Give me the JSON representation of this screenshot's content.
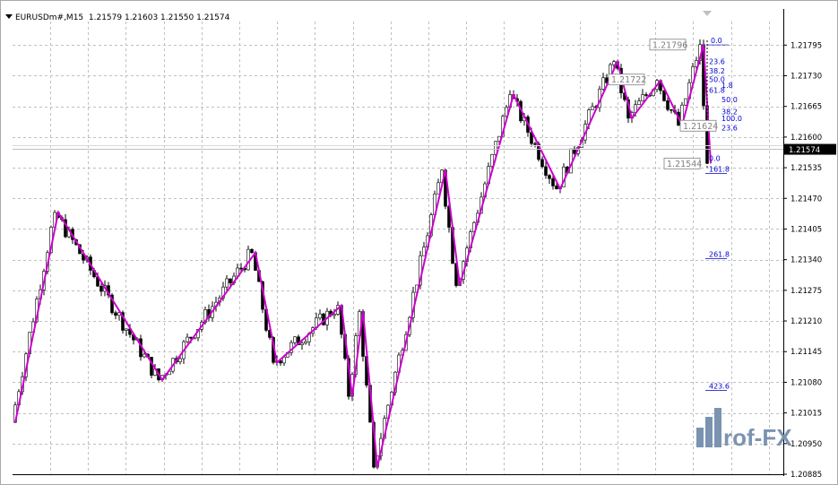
{
  "window": {
    "symbol_title": "EURUSDm#,M15",
    "ohlc": "1.21579 1.21603 1.21550 1.21574"
  },
  "watermark": {
    "text": "Prof-FX"
  },
  "colors": {
    "bull_candle": "#ffffff",
    "bear_candle": "#000000",
    "zigzag": "#cc00cc",
    "fib_text": "#0000cc",
    "grid": "#c0c0c0",
    "current_price_bg": "#000000"
  },
  "chart_data": {
    "type": "candlestick",
    "title": "EURUSDm#,M15",
    "ylim": [
      1.20885,
      1.21845
    ],
    "y_ticks": [
      "1.21795",
      "1.21730",
      "1.21665",
      "1.21600",
      "1.21535",
      "1.21470",
      "1.21405",
      "1.21340",
      "1.21275",
      "1.21210",
      "1.21145",
      "1.21080",
      "1.21015",
      "1.20950",
      "1.20885"
    ],
    "current_price": "1.21574",
    "grid": true,
    "zigzag": {
      "color": "#cc00cc",
      "points": [
        [
          0,
          1.20995
        ],
        [
          12,
          1.2144
        ],
        [
          41,
          1.21085
        ],
        [
          67,
          1.21355
        ],
        [
          73,
          1.21122
        ],
        [
          91,
          1.21243
        ],
        [
          94,
          1.2105
        ],
        [
          97,
          1.2123
        ],
        [
          101,
          1.209
        ],
        [
          120,
          1.2153
        ],
        [
          124,
          1.21285
        ],
        [
          139,
          1.2169
        ],
        [
          152,
          1.2149
        ],
        [
          168,
          1.2176
        ],
        [
          172,
          1.2164
        ],
        [
          180,
          1.2172
        ],
        [
          186,
          1.21625
        ],
        [
          192,
          1.21796
        ],
        [
          194,
          1.21544
        ]
      ]
    },
    "price_labels": [
      {
        "text": "1.21796",
        "price": 1.21796
      },
      {
        "text": "1.21722",
        "price": 1.21722
      },
      {
        "text": "1.21624",
        "price": 1.21624
      },
      {
        "text": "1.21544",
        "price": 1.21544
      }
    ],
    "fib_levels": [
      {
        "label": "0.0",
        "price": 1.21805
      },
      {
        "label": "23.6",
        "price": 1.2176
      },
      {
        "label": "38.2",
        "price": 1.2174
      },
      {
        "label": "50.0",
        "price": 1.21722
      },
      {
        "label": "61.8",
        "price": 1.217
      },
      {
        "label": "1.8",
        "price": 1.2171
      },
      {
        "label": "50.0",
        "price": 1.2168
      },
      {
        "label": "38.2",
        "price": 1.21654
      },
      {
        "label": "100.0",
        "price": 1.2164
      },
      {
        "label": "23.6",
        "price": 1.2162
      },
      {
        "label": "0.0",
        "price": 1.21555
      },
      {
        "label": "161.8",
        "price": 1.21532
      },
      {
        "label": "261.8",
        "price": 1.21352
      },
      {
        "label": "423.6",
        "price": 1.21072
      }
    ]
  }
}
